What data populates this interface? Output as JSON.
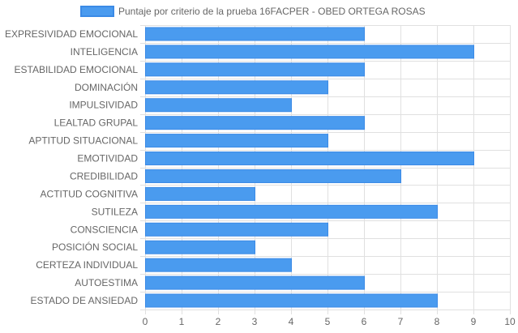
{
  "chart_data": {
    "type": "bar",
    "orientation": "horizontal",
    "categories": [
      "EXPRESIVIDAD EMOCIONAL",
      "INTELIGENCIA",
      "ESTABILIDAD EMOCIONAL",
      "DOMINACIÓN",
      "IMPULSIVIDAD",
      "LEALTAD GRUPAL",
      "APTITUD SITUACIONAL",
      "EMOTIVIDAD",
      "CREDIBILIDAD",
      "ACTITUD COGNITIVA",
      "SUTILEZA",
      "CONSCIENCIA",
      "POSICIÓN SOCIAL",
      "CERTEZA INDIVIDUAL",
      "AUTOESTIMA",
      "ESTADO DE ANSIEDAD"
    ],
    "series": [
      {
        "name": "Puntaje por criterio de la prueba 16FACPER - OBED ORTEGA ROSAS",
        "values": [
          6,
          9,
          6,
          5,
          4,
          6,
          5,
          9,
          7,
          3,
          8,
          5,
          3,
          4,
          6,
          8
        ]
      }
    ],
    "xlim": [
      0,
      10
    ],
    "xticks": [
      "0",
      "1",
      "2",
      "3",
      "4",
      "5",
      "6",
      "7",
      "8",
      "9",
      "10"
    ],
    "grid": true,
    "legend_position": "top",
    "colors": {
      "bar_fill": "#4a9bef",
      "bar_border": "#3b8ae6",
      "grid": "#e0e0e0",
      "text": "#666666"
    }
  }
}
